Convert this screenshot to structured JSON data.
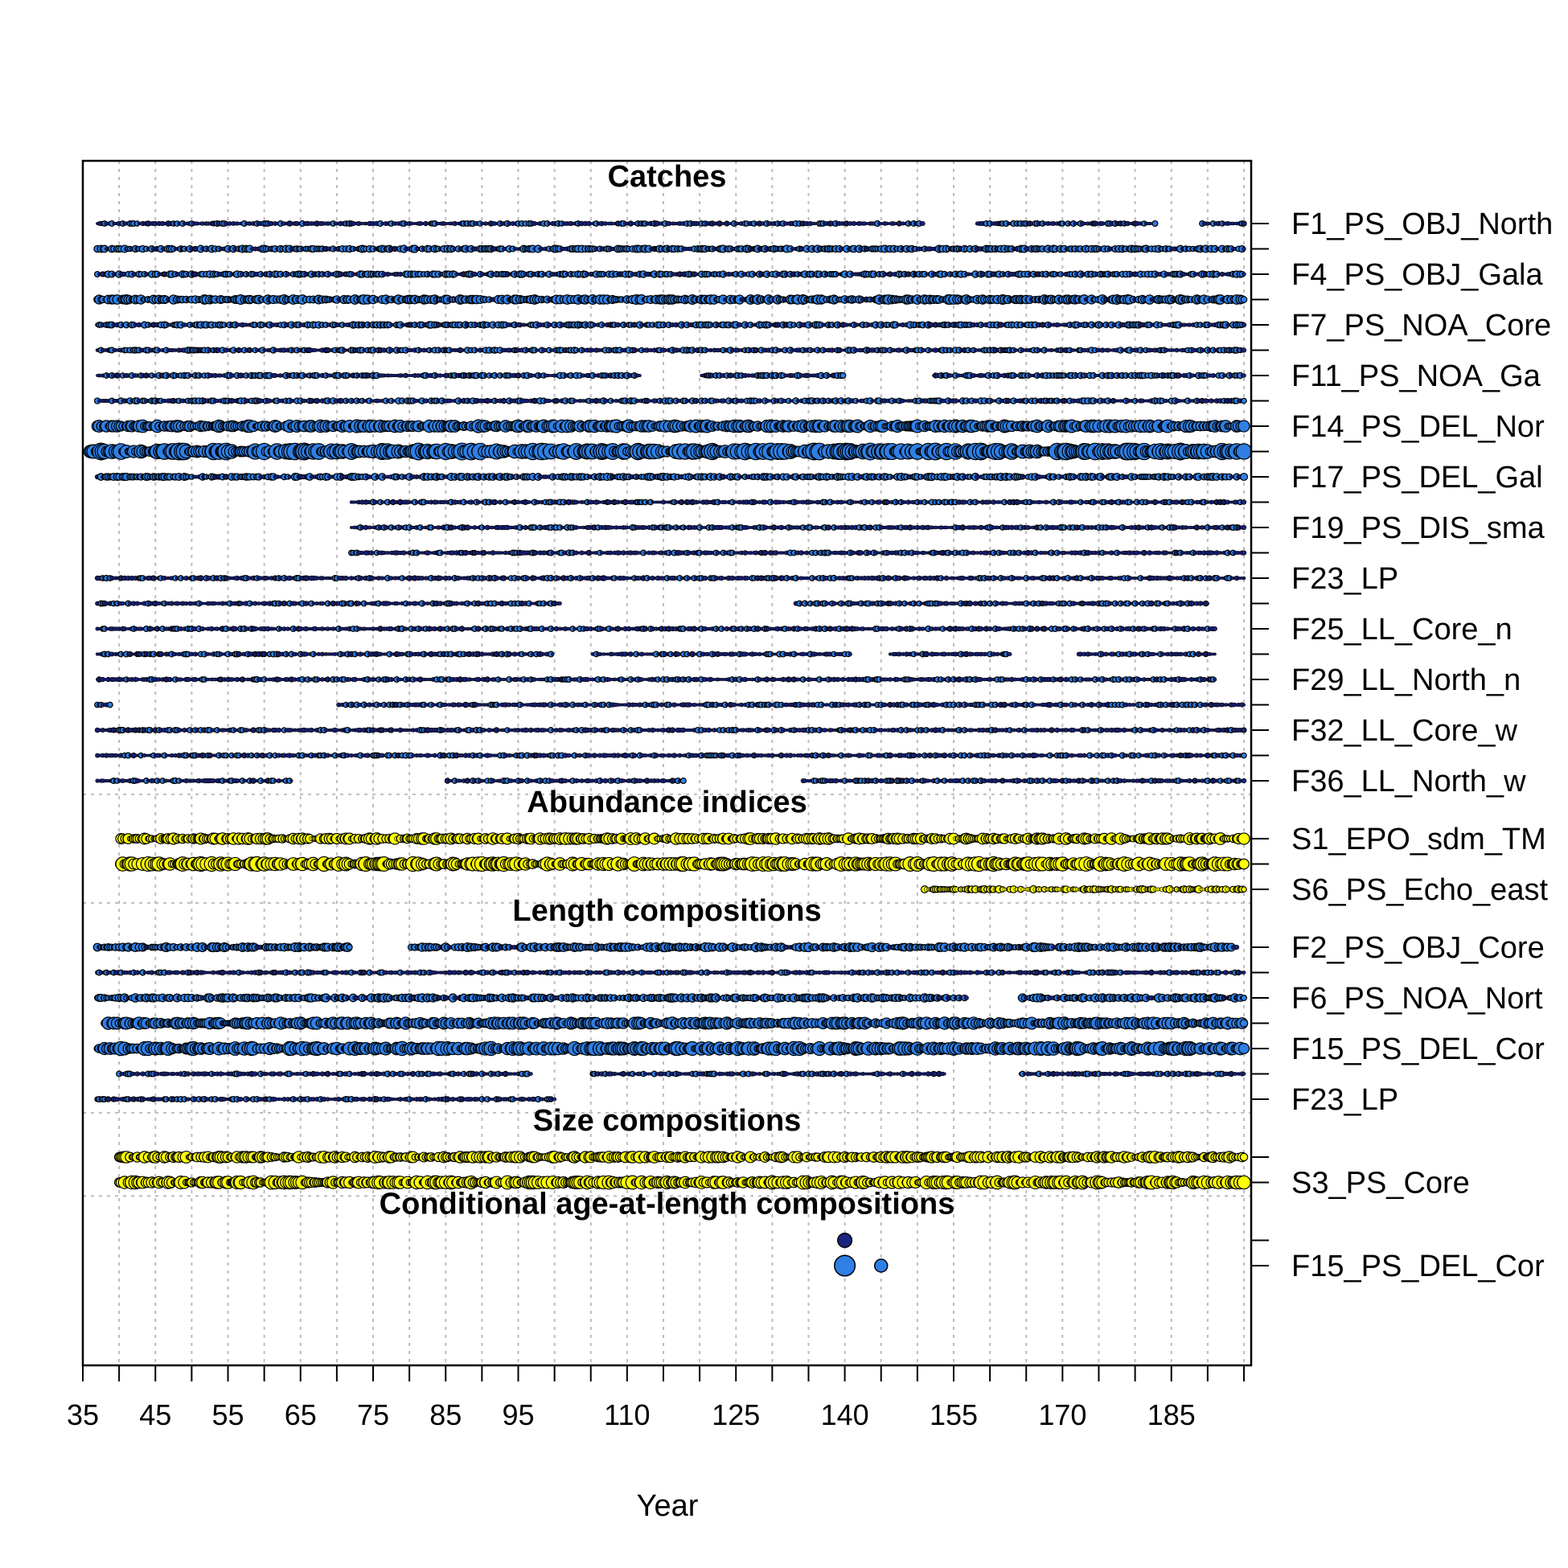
{
  "chart_data": {
    "type": "scatter",
    "xlabel": "Year",
    "xlim": [
      35,
      196
    ],
    "x_ticks": [
      35,
      40,
      45,
      50,
      55,
      60,
      65,
      70,
      75,
      80,
      85,
      90,
      95,
      100,
      105,
      110,
      115,
      120,
      125,
      130,
      135,
      140,
      145,
      150,
      155,
      160,
      165,
      170,
      175,
      180,
      185,
      190,
      195
    ],
    "x_tick_labels": [
      "35",
      "45",
      "55",
      "65",
      "75",
      "85",
      "95",
      "110",
      "125",
      "140",
      "155",
      "170",
      "185"
    ],
    "x_tick_label_values": [
      35,
      45,
      55,
      65,
      75,
      85,
      95,
      110,
      125,
      140,
      155,
      170,
      185
    ],
    "grid": true,
    "colors": {
      "catches": "#2E7FE6",
      "catches_small": "#1a237e",
      "indices": "#FFFF00",
      "length": "#2E7FE6",
      "length_small": "#1a237e",
      "size": "#FFFF00",
      "caal": "#2E7FE6"
    },
    "sections": [
      {
        "title": "Catches",
        "color_key": "catches",
        "rows": [
          {
            "label": "F1_PS_OBJ_North",
            "start": 37,
            "end": 195,
            "gaps": [
              [
                151,
                158
              ],
              [
                183,
                189
              ]
            ],
            "size": 1
          },
          {
            "label": "",
            "start": 37,
            "end": 195,
            "gaps": [],
            "size": 1.3
          },
          {
            "label": "F4_PS_OBJ_Gala",
            "start": 37,
            "end": 195,
            "gaps": [],
            "size": 1.2
          },
          {
            "label": "",
            "start": 37,
            "end": 195,
            "gaps": [],
            "size": 1.7
          },
          {
            "label": "F7_PS_NOA_Core",
            "start": 37,
            "end": 195,
            "gaps": [],
            "size": 1.2
          },
          {
            "label": "",
            "start": 37,
            "end": 195,
            "gaps": [],
            "size": 1.1
          },
          {
            "label": "F11_PS_NOA_Ga",
            "start": 37,
            "end": 195,
            "gaps": [
              [
                112,
                120
              ],
              [
                140,
                152
              ]
            ],
            "size": 1.1
          },
          {
            "label": "",
            "start": 37,
            "end": 195,
            "gaps": [],
            "size": 1.1
          },
          {
            "label": "F14_PS_DEL_Nor",
            "start": 37,
            "end": 195,
            "gaps": [],
            "size": 2.3
          },
          {
            "label": "",
            "start": 36,
            "end": 195,
            "gaps": [],
            "size": 3.0
          },
          {
            "label": "F17_PS_DEL_Gal",
            "start": 37,
            "end": 195,
            "gaps": [],
            "size": 1.3
          },
          {
            "label": "",
            "start": 72,
            "end": 195,
            "gaps": [],
            "size": 1
          },
          {
            "label": "F19_PS_DIS_sma",
            "start": 72,
            "end": 195,
            "gaps": [],
            "size": 1
          },
          {
            "label": "",
            "start": 72,
            "end": 195,
            "gaps": [],
            "size": 1
          },
          {
            "label": "F23_LP",
            "start": 37,
            "end": 195,
            "gaps": [],
            "size": 1
          },
          {
            "label": "",
            "start": 37,
            "end": 190,
            "gaps": [
              [
                101,
                133
              ]
            ],
            "size": 1
          },
          {
            "label": "F25_LL_Core_n",
            "start": 37,
            "end": 191,
            "gaps": [],
            "size": 1
          },
          {
            "label": "",
            "start": 37,
            "end": 191,
            "gaps": [
              [
                100,
                105
              ],
              [
                141,
                146
              ],
              [
                163,
                172
              ]
            ],
            "size": 1
          },
          {
            "label": "F29_LL_North_n",
            "start": 37,
            "end": 191,
            "gaps": [],
            "size": 1
          },
          {
            "label": "",
            "start": 37,
            "end": 195,
            "gaps": [
              [
                39,
                70
              ]
            ],
            "size": 1
          },
          {
            "label": "F32_LL_Core_w",
            "start": 37,
            "end": 195,
            "gaps": [],
            "size": 1
          },
          {
            "label": "",
            "start": 37,
            "end": 195,
            "gaps": [],
            "size": 1
          },
          {
            "label": "F36_LL_North_w",
            "start": 37,
            "end": 195,
            "gaps": [
              [
                64,
                85
              ],
              [
                118,
                134
              ]
            ],
            "size": 1
          }
        ]
      },
      {
        "title": "Abundance indices",
        "color_key": "indices",
        "rows": [
          {
            "label": "S1_EPO_sdm_TM",
            "start": 40,
            "end": 195,
            "gaps": [],
            "size": 2.1
          },
          {
            "label": "",
            "start": 40,
            "end": 195,
            "gaps": [],
            "size": 2.6
          },
          {
            "label": "S6_PS_Echo_east",
            "start": 151,
            "end": 195,
            "gaps": [],
            "size": 1.3
          }
        ]
      },
      {
        "title": "Length compositions",
        "color_key": "length",
        "rows": [
          {
            "label": "F2_PS_OBJ_Core",
            "start": 37,
            "end": 194,
            "gaps": [
              [
                72,
                80
              ]
            ],
            "size": 1.6
          },
          {
            "label": "",
            "start": 37,
            "end": 195,
            "gaps": [],
            "size": 1
          },
          {
            "label": "F6_PS_NOA_Nort",
            "start": 37,
            "end": 195,
            "gaps": [
              [
                157,
                164
              ]
            ],
            "size": 1.5
          },
          {
            "label": "",
            "start": 38,
            "end": 195,
            "gaps": [],
            "size": 2.2
          },
          {
            "label": "F15_PS_DEL_Cor",
            "start": 37,
            "end": 195,
            "gaps": [],
            "size": 2.5
          },
          {
            "label": "",
            "start": 40,
            "end": 195,
            "gaps": [
              [
                97,
                105
              ],
              [
                154,
                164
              ]
            ],
            "size": 1
          },
          {
            "label": "F23_LP",
            "start": 37,
            "end": 100,
            "gaps": [],
            "size": 1
          }
        ]
      },
      {
        "title": "Size compositions",
        "color_key": "size",
        "rows": [
          {
            "label": "",
            "start": 40,
            "end": 195,
            "gaps": [],
            "size": 2.1
          },
          {
            "label": "S3_PS_Core",
            "start": 40,
            "end": 195,
            "gaps": [],
            "size": 2.4
          }
        ]
      },
      {
        "title": "Conditional age-at-length compositions",
        "color_key": "caal",
        "rows": [
          {
            "label": "",
            "points": [
              [
                140,
                2.2
              ]
            ],
            "color": "#1a237e"
          },
          {
            "label": "F15_PS_DEL_Cor",
            "points": [
              [
                140,
                3.2
              ],
              [
                145,
                2.0
              ]
            ]
          }
        ]
      }
    ]
  }
}
